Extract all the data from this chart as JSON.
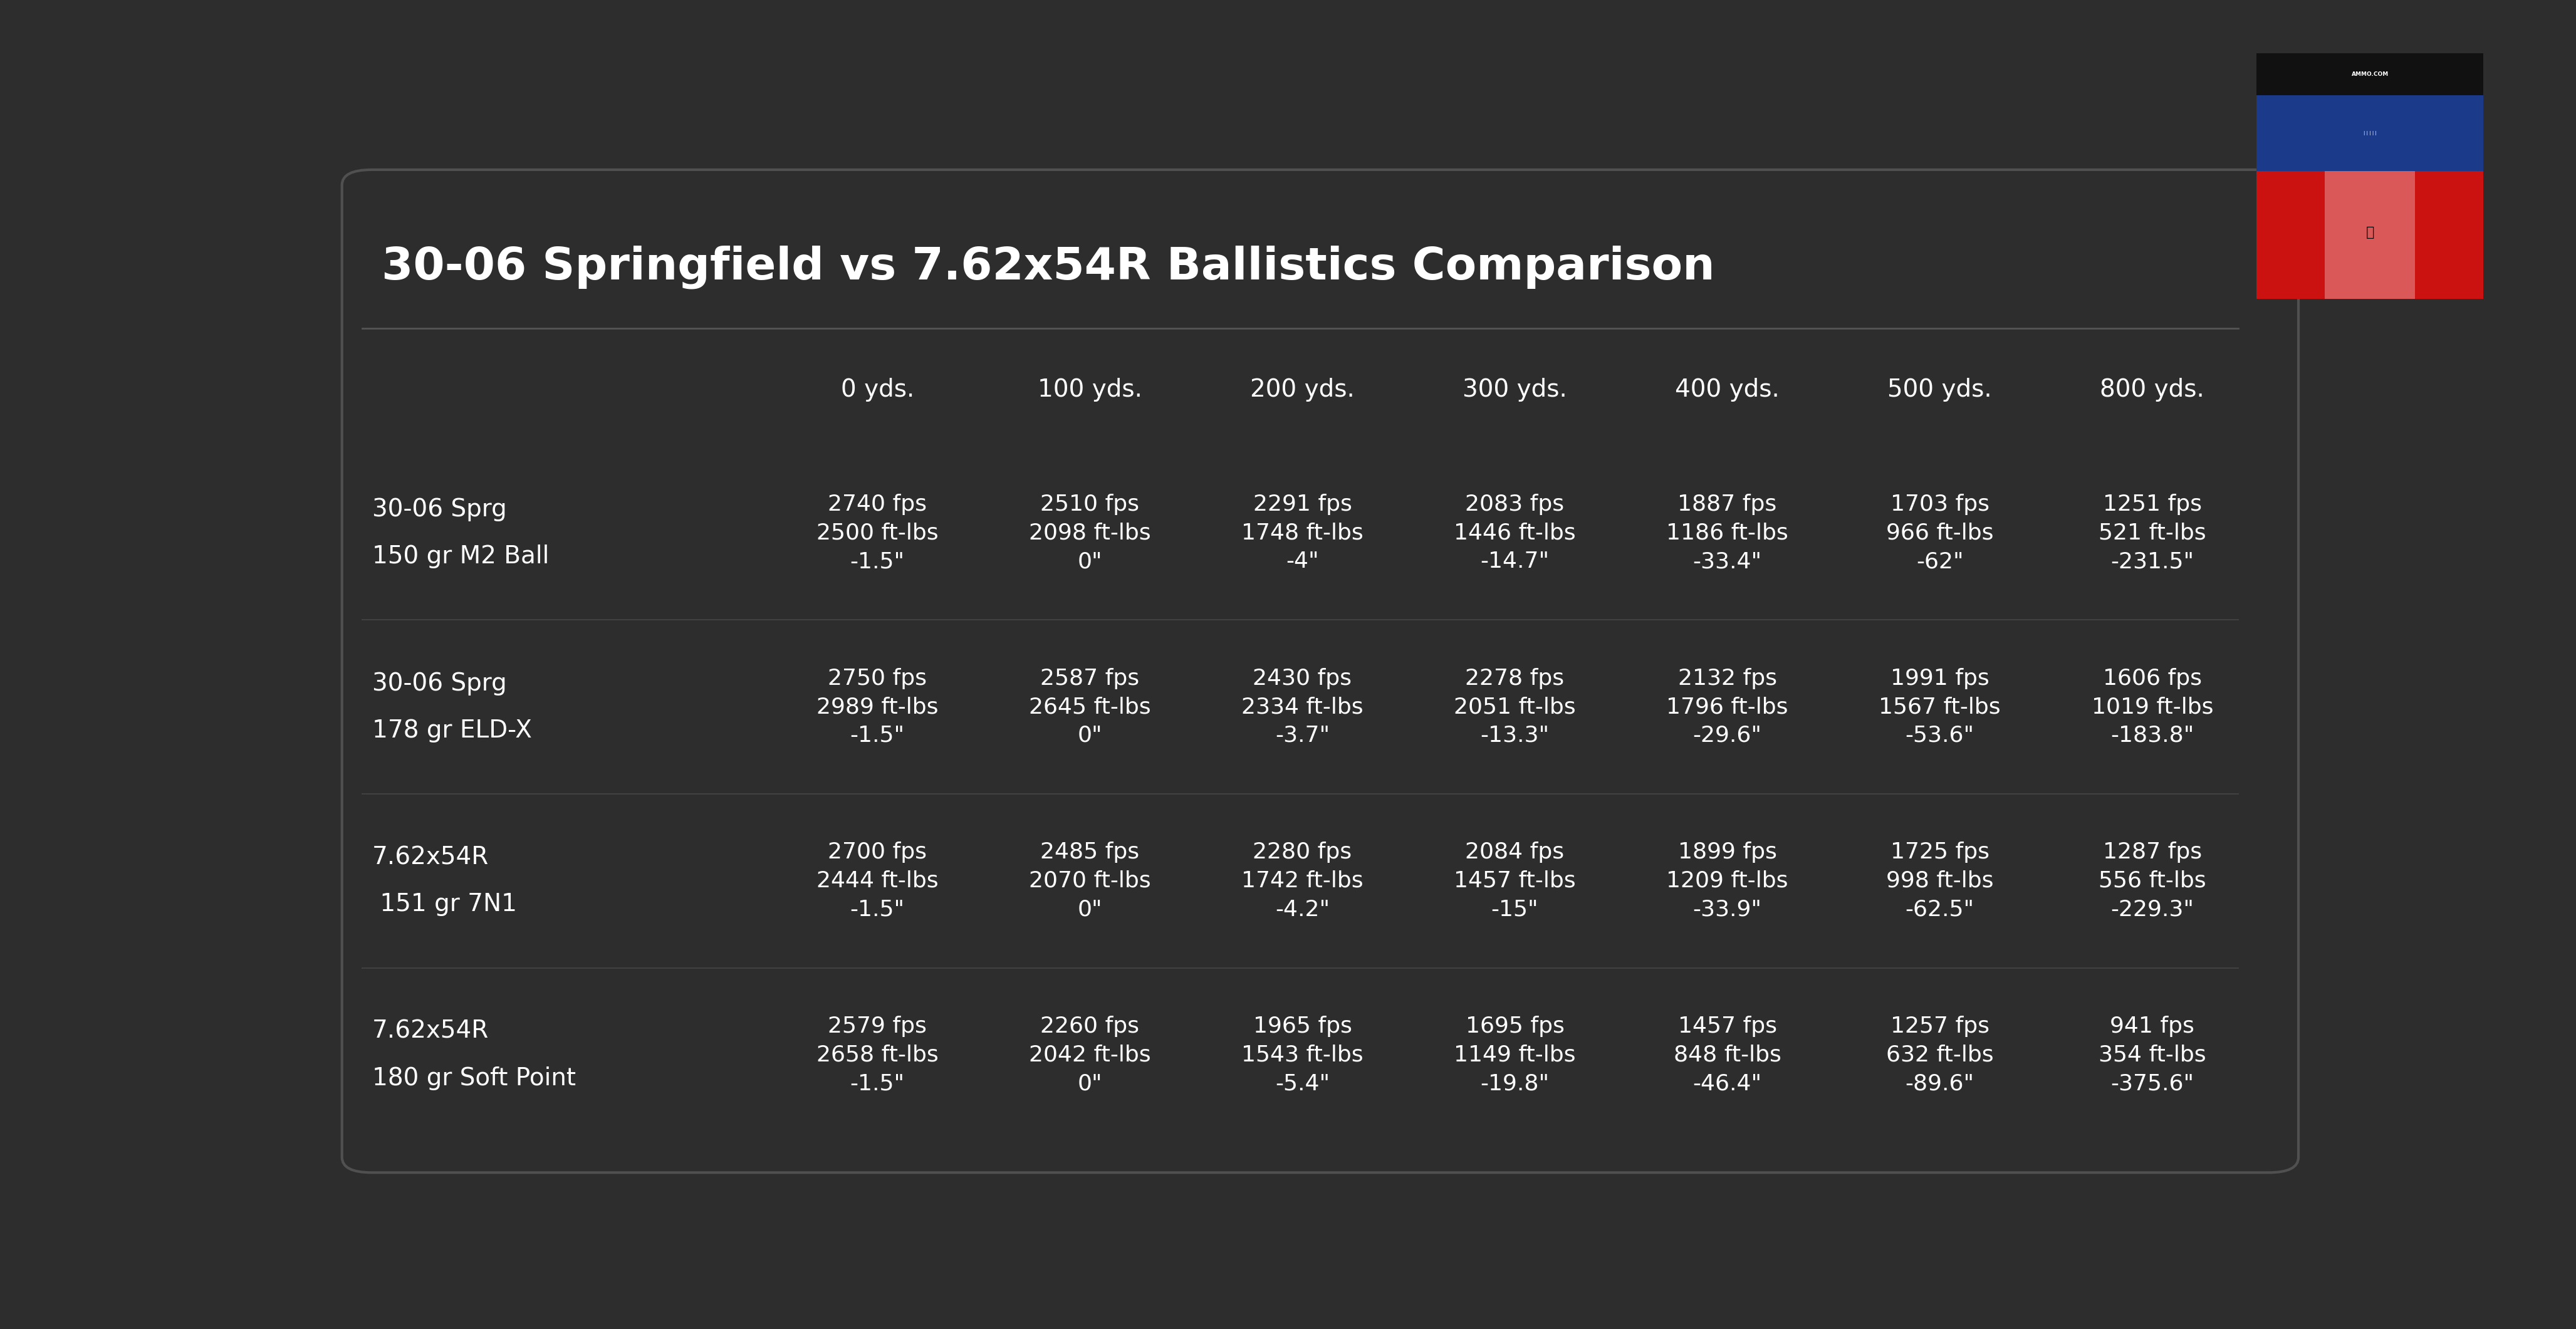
{
  "title": "30-06 Springfield vs 7.62x54R Ballistics Comparison",
  "bg_color": "#2d2d2d",
  "text_color": "#ffffff",
  "title_fontsize": 52,
  "header_fontsize": 28,
  "cell_fontsize": 26,
  "label_fontsize": 28,
  "columns": [
    "0 yds.",
    "100 yds.",
    "200 yds.",
    "300 yds.",
    "400 yds.",
    "500 yds.",
    "800 yds."
  ],
  "rows": [
    {
      "label_line1": "30-06 Sprg",
      "label_line2": "150 gr M2 Ball",
      "data": [
        [
          "2740 fps",
          "2500 ft-lbs",
          "-1.5\""
        ],
        [
          "2510 fps",
          "2098 ft-lbs",
          "0\""
        ],
        [
          "2291 fps",
          "1748 ft-lbs",
          "-4\""
        ],
        [
          "2083 fps",
          "1446 ft-lbs",
          "-14.7\""
        ],
        [
          "1887 fps",
          "1186 ft-lbs",
          "-33.4\""
        ],
        [
          "1703 fps",
          "966 ft-lbs",
          "-62\""
        ],
        [
          "1251 fps",
          "521 ft-lbs",
          "-231.5\""
        ]
      ]
    },
    {
      "label_line1": "30-06 Sprg",
      "label_line2": "178 gr ELD-X",
      "data": [
        [
          "2750 fps",
          "2989 ft-lbs",
          "-1.5\""
        ],
        [
          "2587 fps",
          "2645 ft-lbs",
          "0\""
        ],
        [
          "2430 fps",
          "2334 ft-lbs",
          "-3.7\""
        ],
        [
          "2278 fps",
          "2051 ft-lbs",
          "-13.3\""
        ],
        [
          "2132 fps",
          "1796 ft-lbs",
          "-29.6\""
        ],
        [
          "1991 fps",
          "1567 ft-lbs",
          "-53.6\""
        ],
        [
          "1606 fps",
          "1019 ft-lbs",
          "-183.8\""
        ]
      ]
    },
    {
      "label_line1": "7.62x54R",
      "label_line2": " 151 gr 7N1",
      "data": [
        [
          "2700 fps",
          "2444 ft-lbs",
          "-1.5\""
        ],
        [
          "2485 fps",
          "2070 ft-lbs",
          "0\""
        ],
        [
          "2280 fps",
          "1742 ft-lbs",
          "-4.2\""
        ],
        [
          "2084 fps",
          "1457 ft-lbs",
          "-15\""
        ],
        [
          "1899 fps",
          "1209 ft-lbs",
          "-33.9\""
        ],
        [
          "1725 fps",
          "998 ft-lbs",
          "-62.5\""
        ],
        [
          "1287 fps",
          "556 ft-lbs",
          "-229.3\""
        ]
      ]
    },
    {
      "label_line1": "7.62x54R",
      "label_line2": "180 gr Soft Point",
      "data": [
        [
          "2579 fps",
          "2658 ft-lbs",
          "-1.5\""
        ],
        [
          "2260 fps",
          "2042 ft-lbs",
          "0\""
        ],
        [
          "1965 fps",
          "1543 ft-lbs",
          "-5.4\""
        ],
        [
          "1695 fps",
          "1149 ft-lbs",
          "-19.8\""
        ],
        [
          "1457 fps",
          "848 ft-lbs",
          "-46.4\""
        ],
        [
          "1257 fps",
          "632 ft-lbs",
          "-89.6\""
        ],
        [
          "941 fps",
          "354 ft-lbs",
          "-375.6\""
        ]
      ]
    }
  ],
  "divider_color": "#555555",
  "row_divider_alpha": 0.5
}
